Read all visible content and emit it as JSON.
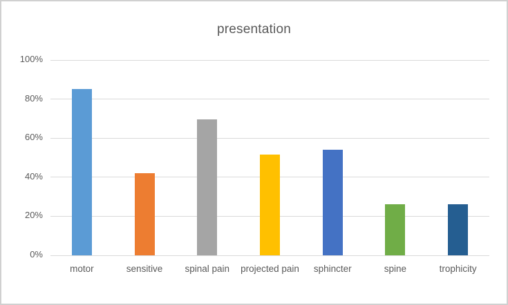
{
  "chart_data": {
    "type": "bar",
    "title": "presentation",
    "categories": [
      "motor",
      "sensitive",
      "spinal pain",
      "projected pain",
      "sphincter",
      "spine",
      "trophicity"
    ],
    "values": [
      85,
      42,
      69.5,
      51.5,
      54,
      26,
      26
    ],
    "bar_colors": [
      "#5B9BD5",
      "#ED7D31",
      "#A5A5A5",
      "#FFC000",
      "#4472C4",
      "#70AD47",
      "#255E91"
    ],
    "y_ticks": [
      0,
      20,
      40,
      60,
      80,
      100
    ],
    "y_tick_labels": [
      "0%",
      "20%",
      "40%",
      "60%",
      "80%",
      "100%"
    ],
    "ylim": [
      0,
      100
    ],
    "xlabel": "",
    "ylabel": "",
    "grid": true,
    "legend": "none",
    "text_color": "#595959",
    "gridline_color": "#d9d9d9",
    "background_color": "#ffffff",
    "border_color": "#d0d0d0"
  }
}
